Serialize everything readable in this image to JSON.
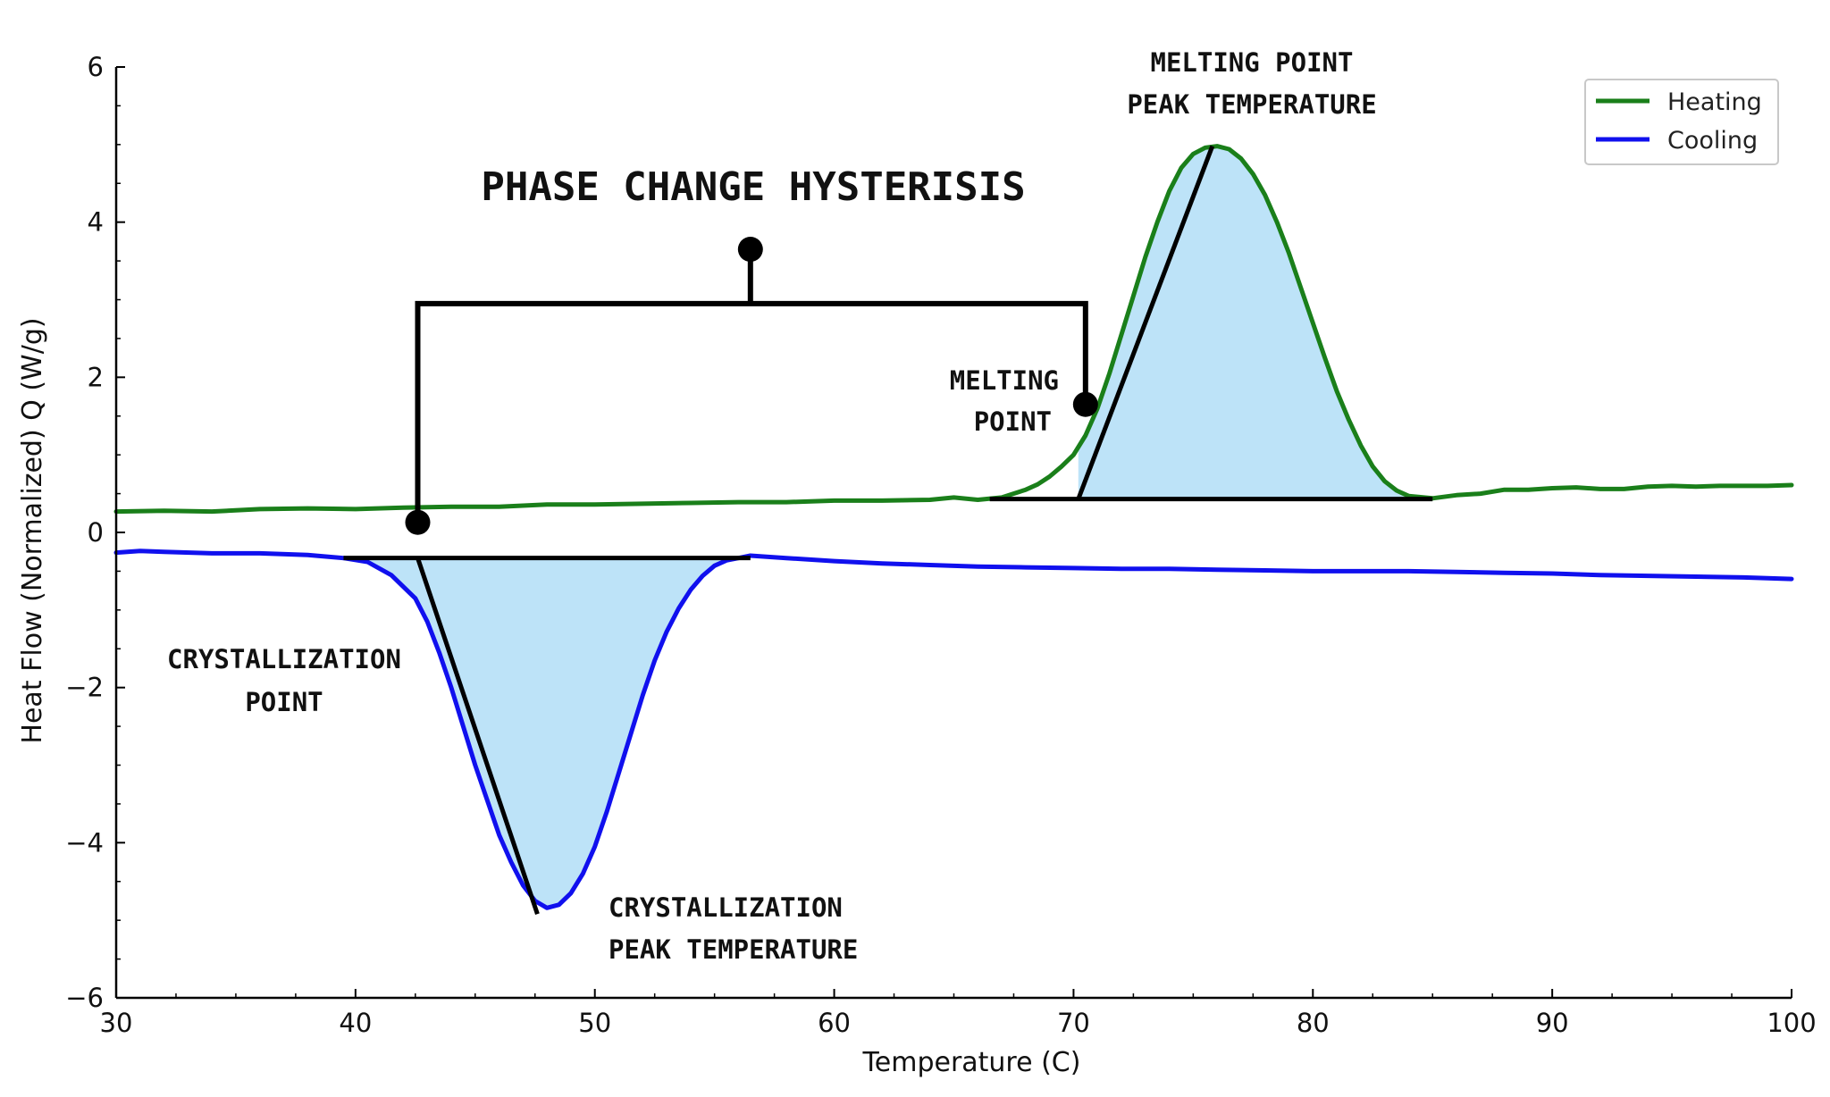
{
  "chart_data": {
    "type": "line",
    "title": "PHASE CHANGE HYSTERISIS",
    "xlabel": "Temperature (C)",
    "ylabel": "Heat Flow (Normalized) Q (W/g)",
    "xlim": [
      30,
      100
    ],
    "ylim": [
      -6,
      6
    ],
    "xticks": [
      30,
      40,
      50,
      60,
      70,
      80,
      90,
      100
    ],
    "xtick_labels": [
      "30",
      "40",
      "50",
      "60",
      "70",
      "80",
      "90",
      "100"
    ],
    "yticks": [
      -6,
      -4,
      -2,
      0,
      2,
      4,
      6
    ],
    "ytick_labels": [
      "−6",
      "−4",
      "−2",
      "0",
      "2",
      "4",
      "6"
    ],
    "grid": false,
    "legend_position": "top-right",
    "series": [
      {
        "name": "Heating",
        "color": "#1a7f1a",
        "x": [
          30,
          32,
          34,
          36,
          38,
          40,
          42,
          44,
          46,
          48,
          50,
          52,
          54,
          56,
          58,
          60,
          62,
          64,
          65,
          66,
          67,
          68,
          68.5,
          69,
          69.5,
          70,
          70.5,
          71,
          71.5,
          72,
          72.5,
          73,
          73.5,
          74,
          74.5,
          75,
          75.5,
          76,
          76.5,
          77,
          77.5,
          78,
          78.5,
          79,
          79.5,
          80,
          80.5,
          81,
          81.5,
          82,
          82.5,
          83,
          83.5,
          84,
          85,
          86,
          87,
          88,
          89,
          90,
          91,
          92,
          93,
          94,
          95,
          96,
          97,
          98,
          99,
          100
        ],
        "y": [
          0.27,
          0.28,
          0.27,
          0.3,
          0.31,
          0.3,
          0.32,
          0.33,
          0.33,
          0.36,
          0.36,
          0.37,
          0.38,
          0.39,
          0.39,
          0.41,
          0.41,
          0.42,
          0.45,
          0.42,
          0.45,
          0.55,
          0.62,
          0.72,
          0.85,
          1.0,
          1.25,
          1.6,
          2.05,
          2.55,
          3.05,
          3.55,
          4.0,
          4.4,
          4.7,
          4.88,
          4.96,
          4.98,
          4.94,
          4.82,
          4.62,
          4.35,
          4.0,
          3.6,
          3.15,
          2.7,
          2.25,
          1.82,
          1.45,
          1.12,
          0.85,
          0.66,
          0.54,
          0.47,
          0.44,
          0.48,
          0.5,
          0.55,
          0.55,
          0.57,
          0.58,
          0.56,
          0.56,
          0.59,
          0.6,
          0.59,
          0.6,
          0.6,
          0.6,
          0.61
        ]
      },
      {
        "name": "Cooling",
        "color": "#1010ee",
        "x": [
          30,
          31,
          32,
          34,
          36,
          38,
          39.5,
          40.5,
          41.5,
          42.5,
          43,
          43.5,
          44,
          44.5,
          45,
          45.5,
          46,
          46.5,
          47,
          47.5,
          48,
          48.5,
          49,
          49.5,
          50,
          50.5,
          51,
          51.5,
          52,
          52.5,
          53,
          53.5,
          54,
          54.5,
          55,
          55.5,
          56,
          56.5,
          58,
          60,
          62,
          64,
          66,
          68,
          70,
          72,
          74,
          76,
          78,
          80,
          82,
          84,
          86,
          88,
          90,
          92,
          94,
          96,
          98,
          100
        ],
        "y": [
          -0.26,
          -0.24,
          -0.25,
          -0.27,
          -0.27,
          -0.29,
          -0.33,
          -0.38,
          -0.55,
          -0.85,
          -1.15,
          -1.55,
          -2.0,
          -2.5,
          -3.0,
          -3.45,
          -3.9,
          -4.25,
          -4.55,
          -4.75,
          -4.84,
          -4.8,
          -4.65,
          -4.4,
          -4.05,
          -3.6,
          -3.1,
          -2.6,
          -2.1,
          -1.65,
          -1.28,
          -0.98,
          -0.74,
          -0.56,
          -0.43,
          -0.36,
          -0.33,
          -0.3,
          -0.33,
          -0.37,
          -0.4,
          -0.42,
          -0.44,
          -0.45,
          -0.46,
          -0.47,
          -0.47,
          -0.48,
          -0.49,
          -0.5,
          -0.5,
          -0.5,
          -0.51,
          -0.52,
          -0.53,
          -0.55,
          -0.56,
          -0.57,
          -0.58,
          -0.6
        ]
      }
    ],
    "baselines": [
      {
        "name": "melting-baseline",
        "x": [
          66.5,
          85
        ],
        "y": [
          0.43,
          0.43
        ]
      },
      {
        "name": "crystallization-baseline",
        "x": [
          39.5,
          56.5
        ],
        "y": [
          -0.33,
          -0.33
        ]
      }
    ],
    "tangents": [
      {
        "name": "melting-tangent",
        "x": [
          70.2,
          75.8
        ],
        "y": [
          0.43,
          4.98
        ]
      },
      {
        "name": "crystallization-tangent",
        "x": [
          42.6,
          47.6
        ],
        "y": [
          -0.33,
          -4.92
        ]
      }
    ],
    "markers": [
      {
        "name": "melting-point-marker",
        "x": 70.5,
        "y": 1.65
      },
      {
        "name": "crystallization-point-marker",
        "x": 42.6,
        "y": 0.13
      },
      {
        "name": "hysteresis-marker",
        "x": 56.5,
        "y": 3.65
      }
    ],
    "bracket": {
      "x_left": 42.6,
      "x_right": 70.5,
      "y_top": 2.95,
      "x_stem": 56.5
    },
    "annotations": {
      "melting_peak_line1": "MELTING POINT",
      "melting_peak_line2": "PEAK TEMPERATURE",
      "melting_point_line1": "MELTING",
      "melting_point_line2": "POINT",
      "crystallization_point_line1": "CRYSTALLIZATION",
      "crystallization_point_line2": "POINT",
      "crystallization_peak_line1": "CRYSTALLIZATION",
      "crystallization_peak_line2": "PEAK TEMPERATURE"
    },
    "shade_color": "#bde3f8"
  }
}
